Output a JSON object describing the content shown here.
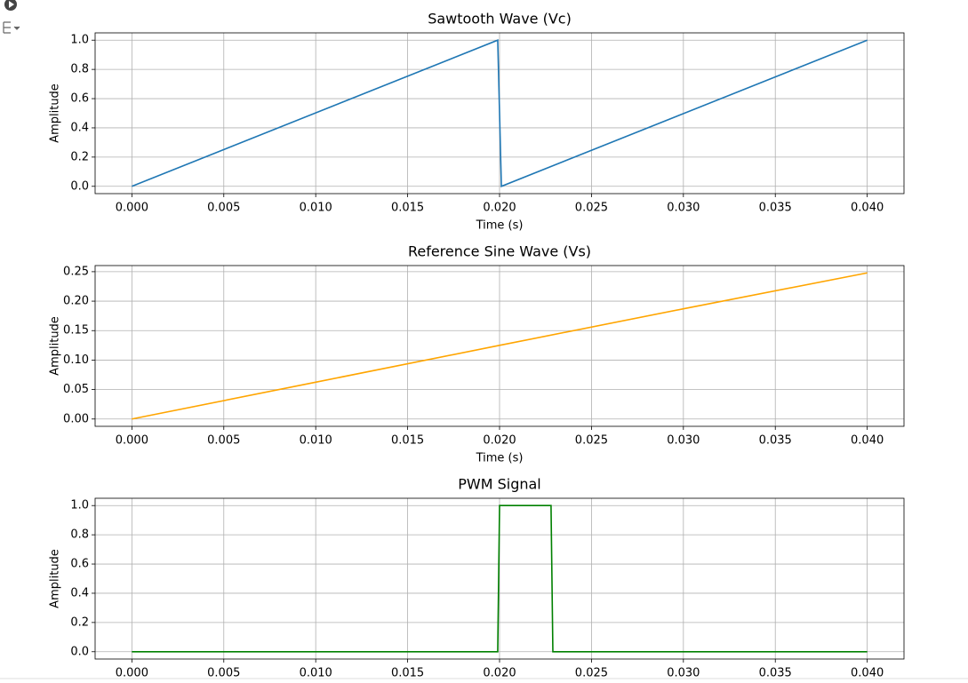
{
  "chart_data": [
    {
      "type": "line",
      "title": "Sawtooth Wave (Vc)",
      "xlabel": "Time (s)",
      "ylabel": "Amplitude",
      "x": [
        0,
        0.0199,
        0.0201,
        0.04
      ],
      "values": [
        0,
        1,
        0,
        1
      ],
      "color": "#1f77b4",
      "xlim": [
        -0.002,
        0.042
      ],
      "ylim": [
        -0.05,
        1.05
      ],
      "grid": true,
      "xticks": [
        {
          "value": 0,
          "label": "0.000"
        },
        {
          "value": 0.005,
          "label": "0.005"
        },
        {
          "value": 0.01,
          "label": "0.010"
        },
        {
          "value": 0.015,
          "label": "0.015"
        },
        {
          "value": 0.02,
          "label": "0.020"
        },
        {
          "value": 0.025,
          "label": "0.025"
        },
        {
          "value": 0.03,
          "label": "0.030"
        },
        {
          "value": 0.035,
          "label": "0.035"
        },
        {
          "value": 0.04,
          "label": "0.040"
        }
      ],
      "yticks": [
        {
          "value": 0,
          "label": "0.0"
        },
        0.2,
        0.4,
        0.6,
        0.8,
        {
          "value": 1,
          "label": "1.0"
        }
      ]
    },
    {
      "type": "line",
      "title": "Reference Sine Wave (Vs)",
      "xlabel": "Time (s)",
      "ylabel": "Amplitude",
      "x": [
        0,
        0.01,
        0.02,
        0.03,
        0.04
      ],
      "values": [
        0,
        0.0625,
        0.125,
        0.187,
        0.248
      ],
      "color": "#ffa500",
      "xlim": [
        -0.002,
        0.042
      ],
      "ylim": [
        -0.0124,
        0.2604
      ],
      "grid": true,
      "xticks": [
        {
          "value": 0,
          "label": "0.000"
        },
        {
          "value": 0.005,
          "label": "0.005"
        },
        {
          "value": 0.01,
          "label": "0.010"
        },
        {
          "value": 0.015,
          "label": "0.015"
        },
        {
          "value": 0.02,
          "label": "0.020"
        },
        {
          "value": 0.025,
          "label": "0.025"
        },
        {
          "value": 0.03,
          "label": "0.030"
        },
        {
          "value": 0.035,
          "label": "0.035"
        },
        {
          "value": 0.04,
          "label": "0.040"
        }
      ],
      "yticks": [
        {
          "value": 0,
          "label": "0.00"
        },
        0.05,
        {
          "value": 0.1,
          "label": "0.10"
        },
        0.15,
        {
          "value": 0.2,
          "label": "0.20"
        },
        0.25
      ]
    },
    {
      "type": "line",
      "title": "PWM Signal",
      "ylabel": "Amplitude",
      "x": [
        0,
        0.0199,
        0.02,
        0.0228,
        0.0229,
        0.04
      ],
      "values": [
        0,
        0,
        1,
        1,
        0,
        0
      ],
      "color": "#008000",
      "xlim": [
        -0.002,
        0.042
      ],
      "ylim": [
        -0.05,
        1.05
      ],
      "grid": true,
      "xticks": [
        {
          "value": 0,
          "label": "0.000"
        },
        {
          "value": 0.005,
          "label": "0.005"
        },
        {
          "value": 0.01,
          "label": "0.010"
        },
        {
          "value": 0.015,
          "label": "0.015"
        },
        {
          "value": 0.02,
          "label": "0.020"
        },
        {
          "value": 0.025,
          "label": "0.025"
        },
        {
          "value": 0.03,
          "label": "0.030"
        },
        {
          "value": 0.035,
          "label": "0.035"
        },
        {
          "value": 0.04,
          "label": "0.040"
        }
      ],
      "yticks": [
        {
          "value": 0,
          "label": "0.0"
        },
        0.2,
        0.4,
        0.6,
        0.8,
        {
          "value": 1,
          "label": "1.0"
        }
      ]
    }
  ]
}
